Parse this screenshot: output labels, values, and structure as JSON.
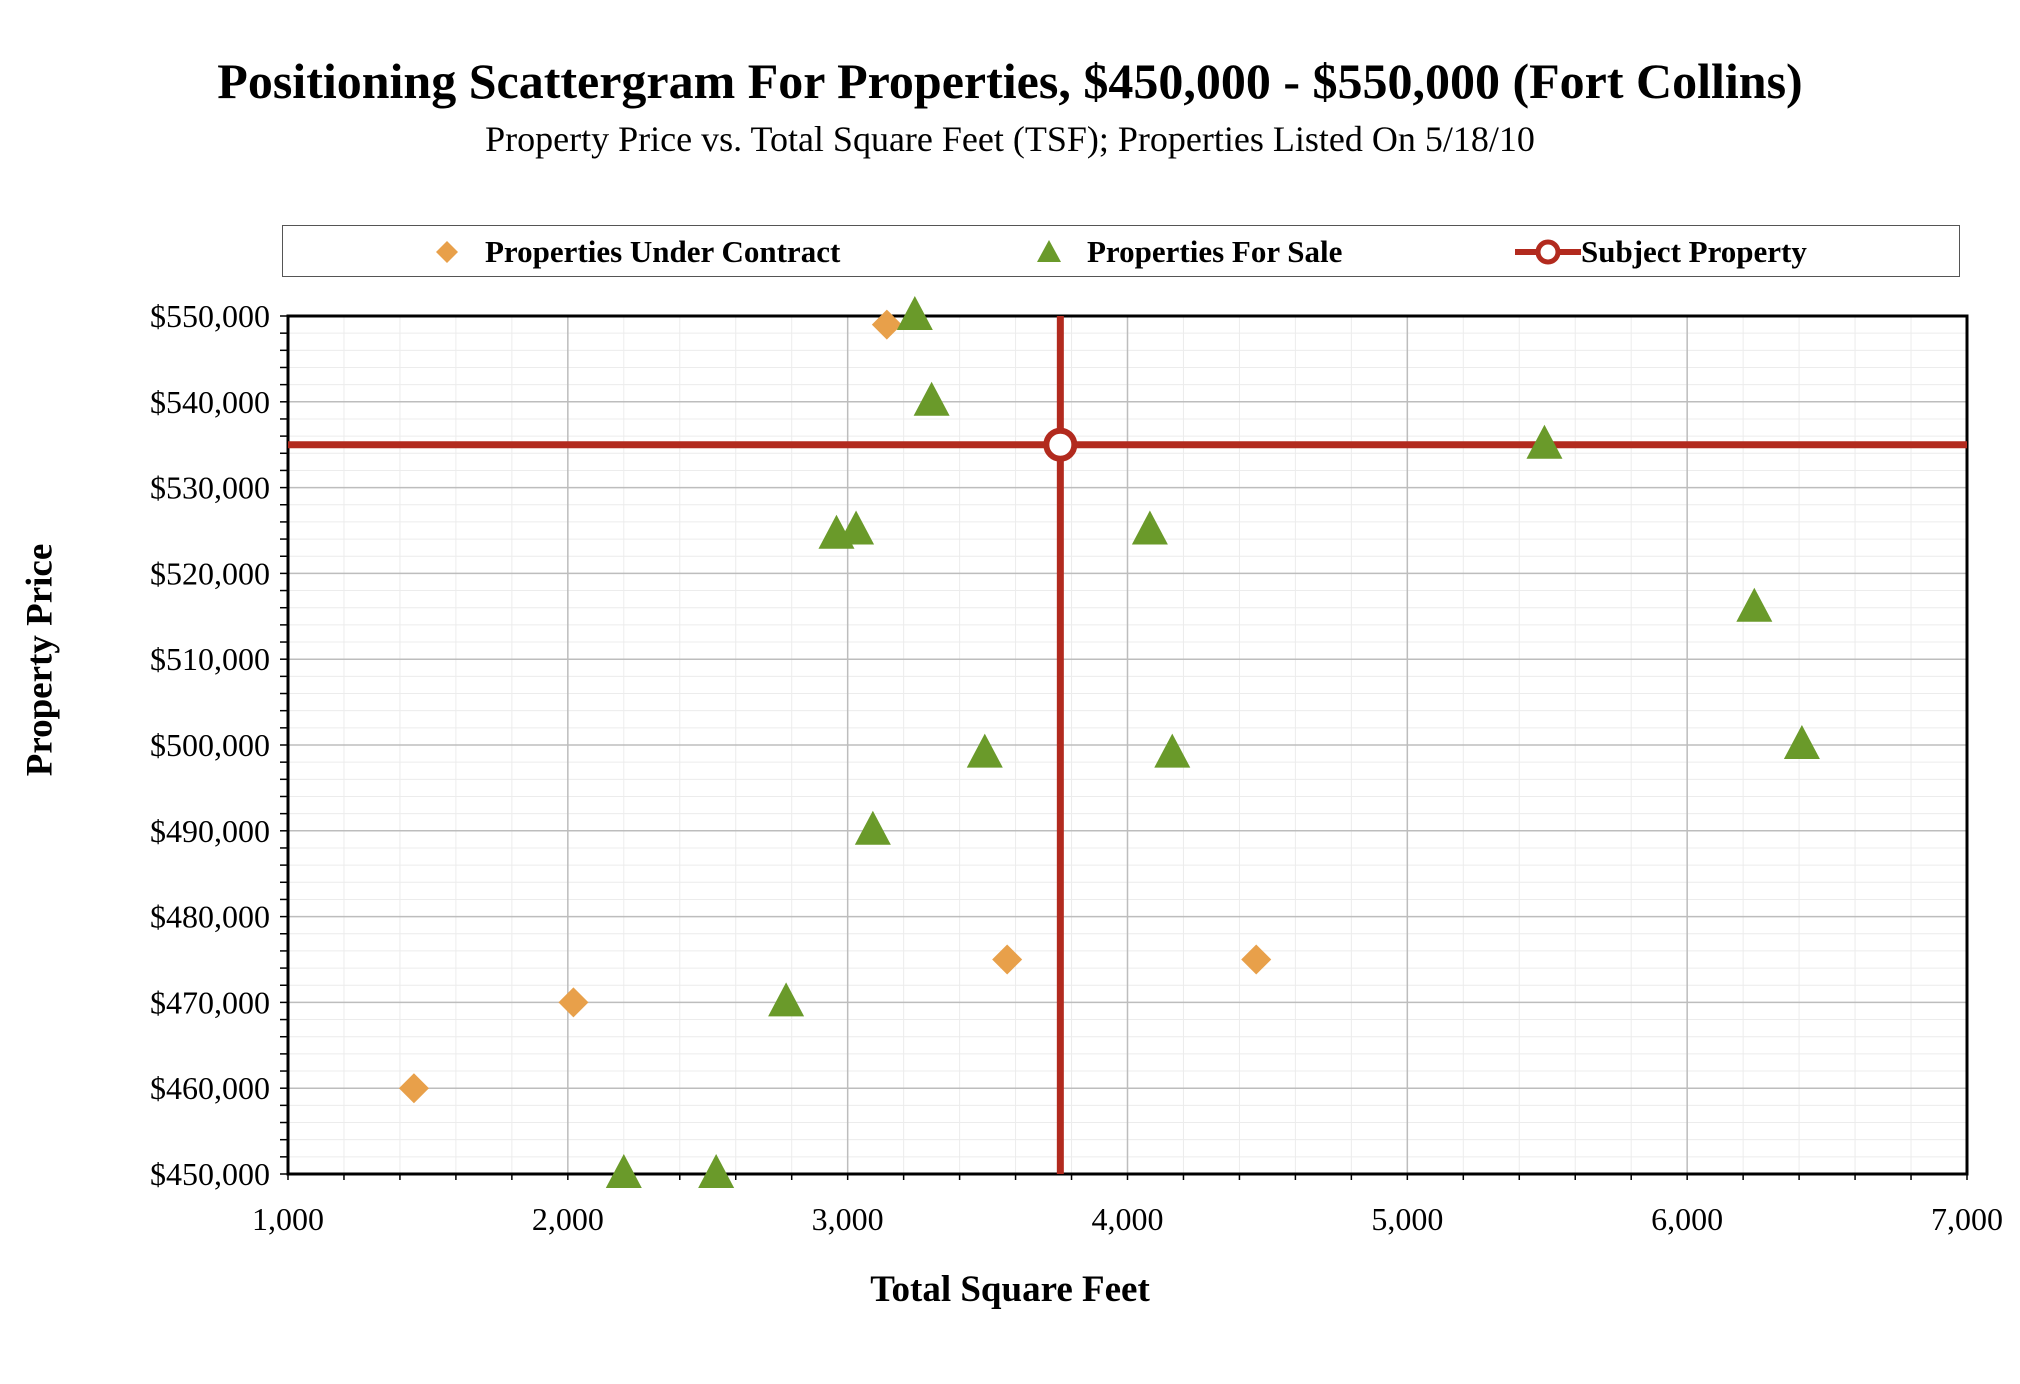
{
  "chart_data": {
    "type": "scatter",
    "title": "Positioning Scattergram For Properties, $450,000 - $550,000 (Fort Collins)",
    "subtitle": "Property Price vs. Total Square Feet (TSF); Properties Listed On 5/18/10",
    "xlabel": "Total Square Feet",
    "ylabel": "Property Price",
    "xlim": [
      1000,
      7000
    ],
    "ylim": [
      450000,
      550000
    ],
    "x_ticks": [
      1000,
      2000,
      3000,
      4000,
      5000,
      6000,
      7000
    ],
    "x_tick_labels": [
      "1,000",
      "2,000",
      "3,000",
      "4,000",
      "5,000",
      "6,000",
      "7,000"
    ],
    "y_ticks": [
      450000,
      460000,
      470000,
      480000,
      490000,
      500000,
      510000,
      520000,
      530000,
      540000,
      550000
    ],
    "y_tick_labels": [
      "$450,000",
      "$460,000",
      "$470,000",
      "$480,000",
      "$490,000",
      "$500,000",
      "$510,000",
      "$520,000",
      "$530,000",
      "$540,000",
      "$550,000"
    ],
    "grid": true,
    "legend_position": "top",
    "series": [
      {
        "name": "Properties Under Contract",
        "marker": "diamond",
        "color": "#E8A04A",
        "points": [
          {
            "x": 3140,
            "y": 549000
          },
          {
            "x": 3570,
            "y": 475000
          },
          {
            "x": 4460,
            "y": 475000
          },
          {
            "x": 2020,
            "y": 470000
          },
          {
            "x": 1450,
            "y": 460000
          }
        ]
      },
      {
        "name": "Properties For Sale",
        "marker": "triangle",
        "color": "#6A9A2A",
        "points": [
          {
            "x": 3240,
            "y": 550000
          },
          {
            "x": 3300,
            "y": 540000
          },
          {
            "x": 5490,
            "y": 535000
          },
          {
            "x": 2960,
            "y": 524500
          },
          {
            "x": 3030,
            "y": 525000
          },
          {
            "x": 4080,
            "y": 525000
          },
          {
            "x": 6240,
            "y": 516000
          },
          {
            "x": 3490,
            "y": 499000
          },
          {
            "x": 4160,
            "y": 499000
          },
          {
            "x": 6410,
            "y": 500000
          },
          {
            "x": 3090,
            "y": 490000
          },
          {
            "x": 2780,
            "y": 470000
          },
          {
            "x": 2200,
            "y": 450000
          },
          {
            "x": 2530,
            "y": 450000
          }
        ]
      },
      {
        "name": "Subject Property",
        "marker": "circle-crosshair",
        "color": "#B22A1E",
        "points": [
          {
            "x": 3760,
            "y": 535000
          }
        ]
      }
    ]
  }
}
